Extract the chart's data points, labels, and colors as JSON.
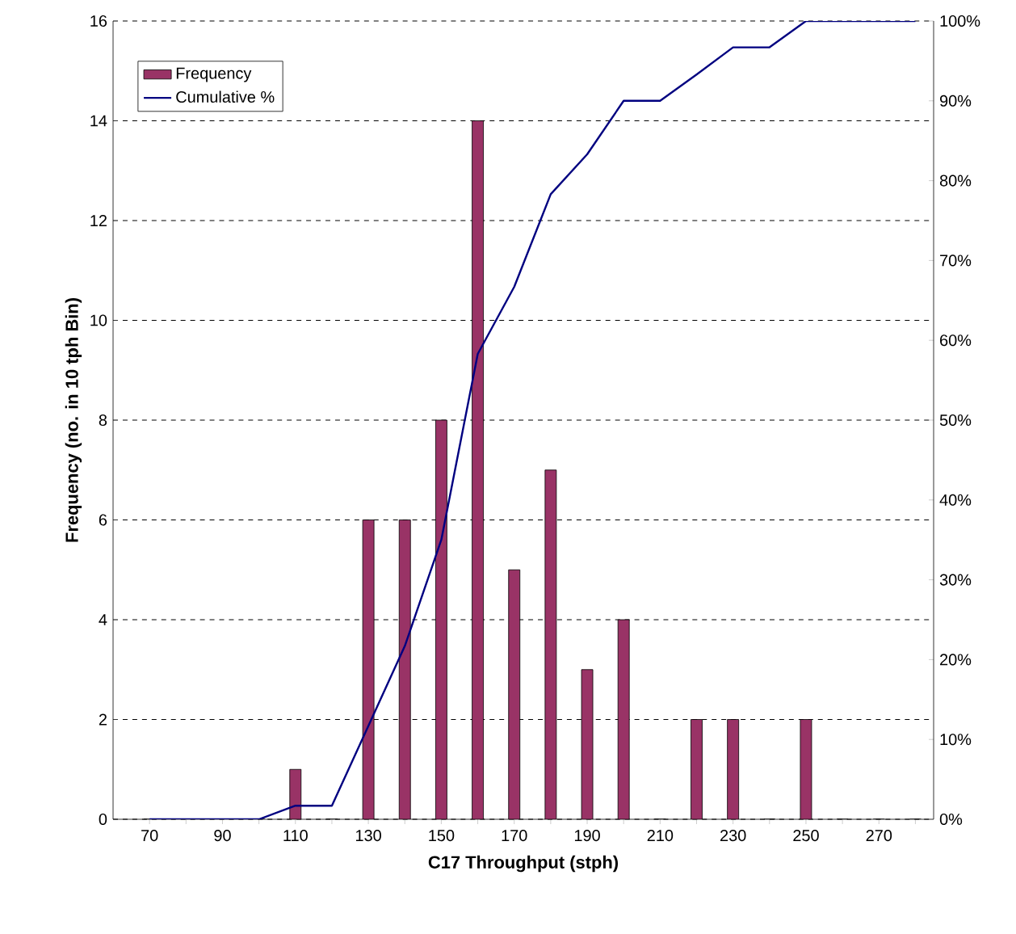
{
  "chart_data": {
    "type": "bar",
    "xlabel": "C17 Throughput (stph)",
    "ylabel": "Frequency (no. in 10 tph Bin)",
    "categories": [
      "70",
      null,
      "90",
      null,
      "110",
      null,
      "130",
      null,
      "150",
      null,
      "170",
      null,
      "190",
      null,
      "210",
      null,
      "230",
      null,
      "250",
      null,
      "270",
      null
    ],
    "series": [
      {
        "name": "Frequency",
        "color": "#993366",
        "values": [
          0,
          0,
          0,
          0,
          1,
          0,
          6,
          6,
          8,
          14,
          5,
          7,
          3,
          4,
          0,
          2,
          2,
          0,
          2,
          0,
          0,
          0
        ]
      },
      {
        "name": "Cumulative %",
        "type": "line",
        "axis": "y2",
        "color": "#000080",
        "values": [
          0,
          0,
          0,
          0,
          1.7,
          1.7,
          11.7,
          21.7,
          35,
          58.3,
          66.7,
          78.3,
          83.3,
          90,
          90,
          93.3,
          96.7,
          96.7,
          100,
          100,
          100,
          100
        ]
      }
    ],
    "ylim": [
      0,
      16
    ],
    "yticks": [
      0,
      2,
      4,
      6,
      8,
      10,
      12,
      14,
      16
    ],
    "y2lim": [
      0,
      100
    ],
    "y2ticks": [
      {
        "value": 0,
        "label": "0%"
      },
      {
        "value": 10,
        "label": "10%"
      },
      {
        "value": 20,
        "label": "20%"
      },
      {
        "value": 30,
        "label": "30%"
      },
      {
        "value": 40,
        "label": "40%"
      },
      {
        "value": 50,
        "label": "50%"
      },
      {
        "value": 60,
        "label": "60%"
      },
      {
        "value": 70,
        "label": "70%"
      },
      {
        "value": 80,
        "label": "80%"
      },
      {
        "value": 90,
        "label": "90%"
      },
      {
        "value": 100,
        "label": "100%"
      }
    ],
    "grid": "y",
    "legend": "top left"
  }
}
